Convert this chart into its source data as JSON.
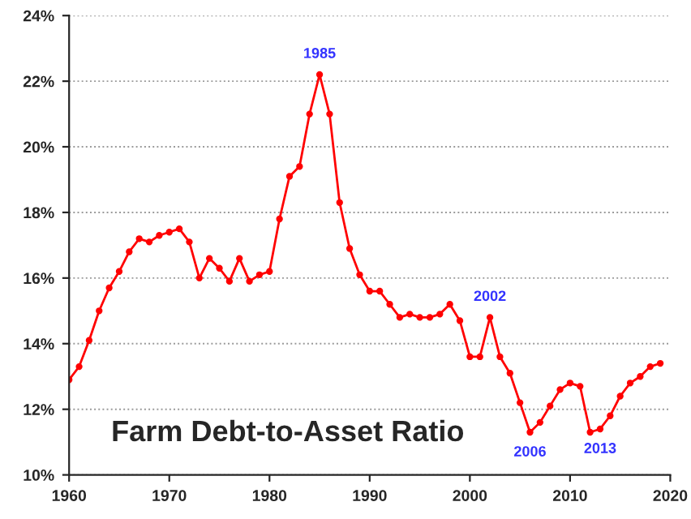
{
  "chart_data": {
    "type": "line",
    "title": "Farm Debt-to-Asset Ratio",
    "x": [
      1960,
      1961,
      1962,
      1963,
      1964,
      1965,
      1966,
      1967,
      1968,
      1969,
      1970,
      1971,
      1972,
      1973,
      1974,
      1975,
      1976,
      1977,
      1978,
      1979,
      1980,
      1981,
      1982,
      1983,
      1984,
      1985,
      1986,
      1987,
      1988,
      1989,
      1990,
      1991,
      1992,
      1993,
      1994,
      1995,
      1996,
      1997,
      1998,
      1999,
      2000,
      2001,
      2002,
      2003,
      2004,
      2005,
      2006,
      2007,
      2008,
      2009,
      2010,
      2011,
      2012,
      2013,
      2014,
      2015,
      2016,
      2017,
      2018,
      2019
    ],
    "series": [
      {
        "color": "#ff0000",
        "values": [
          12.9,
          13.3,
          14.1,
          15.0,
          15.7,
          16.2,
          16.8,
          17.2,
          17.1,
          17.3,
          17.4,
          17.5,
          17.1,
          16.0,
          16.6,
          16.3,
          15.9,
          16.6,
          15.9,
          16.1,
          16.2,
          17.8,
          19.1,
          19.4,
          21.0,
          22.2,
          21.0,
          18.3,
          16.9,
          16.1,
          15.6,
          15.6,
          15.2,
          14.8,
          14.9,
          14.8,
          14.8,
          14.9,
          15.2,
          14.7,
          13.6,
          13.6,
          14.8,
          13.6,
          13.1,
          12.2,
          11.3,
          11.6,
          12.1,
          12.6,
          12.8,
          12.7,
          11.3,
          11.4,
          11.8,
          12.4,
          12.8,
          13.0,
          13.3,
          13.4
        ]
      }
    ],
    "xlim": [
      1960,
      2020
    ],
    "xticks": [
      1960,
      1970,
      1980,
      1990,
      2000,
      2010,
      2020
    ],
    "ylim": [
      10,
      24
    ],
    "yticks": [
      {
        "value": 10,
        "label": "10%"
      },
      {
        "value": 12,
        "label": "12%"
      },
      {
        "value": 14,
        "label": "14%"
      },
      {
        "value": 16,
        "label": "16%"
      },
      {
        "value": 18,
        "label": "18%"
      },
      {
        "value": 20,
        "label": "20%"
      },
      {
        "value": 22,
        "label": "22%"
      },
      {
        "value": 24,
        "label": "24%"
      }
    ],
    "grid": "y",
    "marker": "circle",
    "line_style": "solid",
    "annotations": [
      {
        "text": "1985",
        "x": 1985,
        "y": 22.2
      },
      {
        "text": "2002",
        "x": 2002,
        "y": 14.8
      },
      {
        "text": "2006",
        "x": 2006,
        "y": 11.3
      },
      {
        "text": "2013",
        "x": 2013,
        "y": 11.4
      }
    ]
  }
}
